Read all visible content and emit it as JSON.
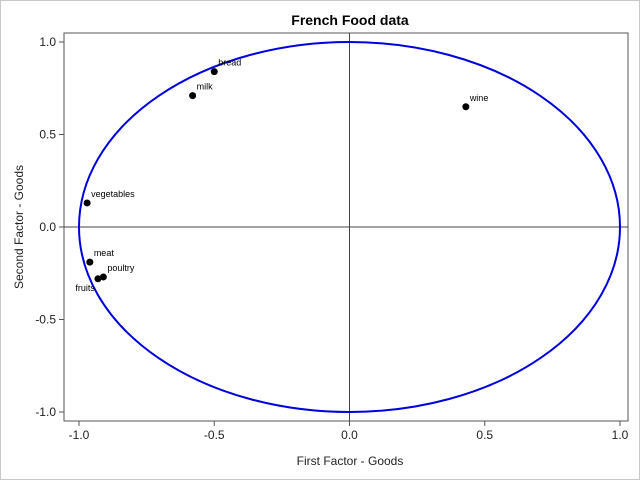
{
  "chart_data": {
    "type": "scatter",
    "title": "French Food data",
    "xlabel": "First Factor - Goods",
    "ylabel": "Second Factor - Goods",
    "xlim": [
      -1.0,
      1.0
    ],
    "ylim": [
      -1.0,
      1.0
    ],
    "xticks": [
      "-1.0",
      "-0.5",
      "0.0",
      "0.5",
      "1.0"
    ],
    "yticks": [
      "-1.0",
      "-0.5",
      "0.0",
      "0.5",
      "1.0"
    ],
    "reference_lines": {
      "x": 0,
      "y": 0
    },
    "circle": {
      "center": [
        0,
        0
      ],
      "radius": 1,
      "color": "#0000dd"
    },
    "grid": false,
    "points": [
      {
        "label": "bread",
        "x": -0.5,
        "y": 0.84
      },
      {
        "label": "milk",
        "x": -0.58,
        "y": 0.71
      },
      {
        "label": "wine",
        "x": 0.43,
        "y": 0.65
      },
      {
        "label": "vegetables",
        "x": -0.97,
        "y": 0.13
      },
      {
        "label": "meat",
        "x": -0.96,
        "y": -0.19
      },
      {
        "label": "poultry",
        "x": -0.91,
        "y": -0.27
      },
      {
        "label": "fruits",
        "x": -0.93,
        "y": -0.28
      }
    ]
  }
}
